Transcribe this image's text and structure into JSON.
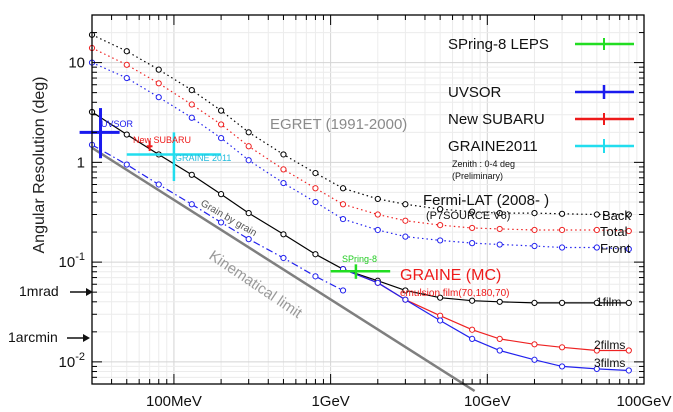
{
  "chart_data": {
    "type": "line",
    "ylabel": "Angular Resolution (deg)",
    "x_scale": "log",
    "y_scale": "log",
    "x_unit": "GeV",
    "xlim": [
      0.03,
      100
    ],
    "ylim": [
      0.006,
      30
    ],
    "x_ticks": [
      {
        "value": 0.1,
        "label": "100MeV"
      },
      {
        "value": 1,
        "label": "1GeV"
      },
      {
        "value": 10,
        "label": "10GeV"
      },
      {
        "value": 100,
        "label": "100GeV"
      }
    ],
    "y_ticks": [
      {
        "value": 0.01,
        "label": "10-2"
      },
      {
        "value": 0.1,
        "label": "10-1"
      },
      {
        "value": 1,
        "label": "1"
      },
      {
        "value": 10,
        "label": "10"
      }
    ],
    "grid": true,
    "left_markers": [
      {
        "label": "1mrad",
        "value": 0.0573
      },
      {
        "label": "1arcmin",
        "value": 0.0167
      }
    ],
    "legend": {
      "placement": "top-right",
      "entries": [
        {
          "label": "SPring-8 LEPS",
          "color": "#22dd22"
        },
        {
          "label": "UVSOR",
          "color": "#1a1aee"
        },
        {
          "label": "New SUBARU",
          "color": "#ee1a1a"
        },
        {
          "label": "GRAINE2011",
          "color": "#22ddee"
        }
      ]
    },
    "series": [
      {
        "group": "fermi",
        "color": "#000000",
        "dash": "dot",
        "label": "Back",
        "x": [
          0.03,
          0.05,
          0.08,
          0.13,
          0.2,
          0.3,
          0.5,
          0.8,
          1.2,
          2,
          3,
          5,
          8,
          12,
          20,
          30,
          50,
          80
        ],
        "y": [
          19,
          13,
          8.5,
          5.3,
          3.3,
          2.0,
          1.2,
          0.78,
          0.55,
          0.43,
          0.38,
          0.34,
          0.32,
          0.31,
          0.31,
          0.305,
          0.3,
          0.3
        ]
      },
      {
        "group": "fermi",
        "color": "#ee2222",
        "dash": "dot",
        "label": "Total",
        "x": [
          0.03,
          0.05,
          0.08,
          0.13,
          0.2,
          0.3,
          0.5,
          0.8,
          1.2,
          2,
          3,
          5,
          8,
          12,
          20,
          30,
          50,
          80
        ],
        "y": [
          14,
          9.5,
          6.2,
          3.8,
          2.4,
          1.45,
          0.85,
          0.55,
          0.38,
          0.3,
          0.26,
          0.235,
          0.22,
          0.215,
          0.21,
          0.21,
          0.21,
          0.205
        ]
      },
      {
        "group": "fermi",
        "color": "#2222ee",
        "dash": "dot",
        "label": "Front",
        "x": [
          0.03,
          0.05,
          0.08,
          0.13,
          0.2,
          0.3,
          0.5,
          0.8,
          1.2,
          2,
          3,
          5,
          8,
          12,
          20,
          30,
          50,
          80
        ],
        "y": [
          10,
          7,
          4.5,
          2.8,
          1.75,
          1.05,
          0.62,
          0.4,
          0.27,
          0.21,
          0.18,
          0.165,
          0.155,
          0.15,
          0.145,
          0.14,
          0.14,
          0.135
        ]
      },
      {
        "group": "graine",
        "color": "#2222ee",
        "dash": "dashdot",
        "x": [
          0.03,
          0.05,
          0.08,
          0.13,
          0.2,
          0.3,
          0.5,
          0.8,
          1.2
        ],
        "y": [
          1.5,
          0.95,
          0.6,
          0.38,
          0.25,
          0.17,
          0.11,
          0.072,
          0.052
        ]
      },
      {
        "group": "graine",
        "color": "#000000",
        "dash": "solid",
        "label": "1film",
        "x": [
          0.03,
          0.05,
          0.08,
          0.13,
          0.2,
          0.3,
          0.5,
          0.8,
          1.2,
          2,
          3,
          5,
          8,
          12,
          20,
          30,
          50,
          80
        ],
        "y": [
          3.2,
          1.9,
          1.2,
          0.75,
          0.48,
          0.31,
          0.19,
          0.12,
          0.085,
          0.065,
          0.052,
          0.044,
          0.041,
          0.04,
          0.039,
          0.039,
          0.039,
          0.039
        ]
      },
      {
        "group": "graine",
        "color": "#ee2222",
        "dash": "solid",
        "label": "2films",
        "x": [
          1.2,
          2,
          3,
          5,
          8,
          12,
          20,
          30,
          50,
          80
        ],
        "y": [
          0.085,
          0.062,
          0.042,
          0.029,
          0.021,
          0.017,
          0.015,
          0.014,
          0.013,
          0.013
        ]
      },
      {
        "group": "graine",
        "color": "#2222ee",
        "dash": "solid",
        "label": "3films",
        "x": [
          1.2,
          2,
          3,
          5,
          8,
          12,
          20,
          30,
          50,
          80
        ],
        "y": [
          0.085,
          0.062,
          0.042,
          0.026,
          0.017,
          0.013,
          0.0105,
          0.009,
          0.0085,
          0.0082
        ]
      },
      {
        "group": "limit",
        "color": "#7f7f7f",
        "dash": "solid",
        "x": [
          0.03,
          8.3
        ],
        "y": [
          1.4,
          0.0051
        ]
      }
    ],
    "points": [
      {
        "label": "UVSOR",
        "color": "#1a1aee",
        "x": 0.034,
        "y": 2.0,
        "x_range": [
          0.025,
          0.045
        ],
        "y_range": [
          1.1,
          3.5
        ],
        "lw": 3
      },
      {
        "label": "New SUBARU",
        "color": "#ee1a1a",
        "x": 0.07,
        "y": 1.45,
        "x_range": [
          0.067,
          0.073
        ],
        "y_range": [
          1.3,
          1.65
        ],
        "lw": 2
      },
      {
        "label": "GRAINE2011",
        "color": "#22ddee",
        "x": 0.1,
        "y": 1.2,
        "x_range": [
          0.05,
          0.2
        ],
        "y_range": [
          0.65,
          2.0
        ],
        "lw": 2.5
      },
      {
        "label": "SPring-8",
        "color": "#22dd22",
        "x": 1.45,
        "y": 0.081,
        "x_range": [
          1.0,
          2.4
        ],
        "y_range": [
          0.068,
          0.095
        ],
        "lw": 2.5
      }
    ],
    "annotations": {
      "egret": "EGRET (1991-2000)",
      "fermi_title": "Fermi-LAT (2008- )",
      "fermi_sub": "(P7SOURCE V6)",
      "graine_mc": "GRAINE (MC)",
      "emulsion": "emulsion film(70,180,70)",
      "kinematical": "Kinematical limit",
      "grain": "Grain by grain",
      "legend_note1": "Zenith : 0-4 deg",
      "legend_note2": "(Preliminary)",
      "uvsor": "UVSOR",
      "new_subaru": "New SUBARU",
      "graine2011": "GRAINE 2011",
      "spring8": "SPring-8",
      "back": "Back",
      "total": "Total",
      "front": "Front",
      "film1": "1film",
      "film2": "2films",
      "film3": "3films"
    }
  }
}
